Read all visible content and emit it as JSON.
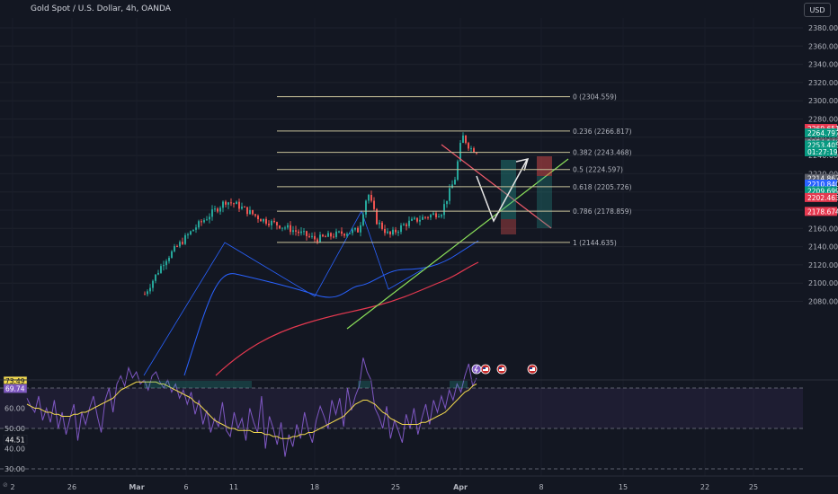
{
  "header": {
    "title": "Gold Spot / U.S. Dollar, 4h, OANDA",
    "currency_button": "USD"
  },
  "colors": {
    "background": "#131722",
    "fib": "#c8c29a",
    "price_axis_text": "#b2b5be",
    "ma_fast": "#2962ff",
    "ma_slow": "#e53950",
    "trend_up": "#8be05a",
    "trend_down": "#f05a6a",
    "rsi": "#7e57c2",
    "rsi_ma": "#f2d94e",
    "bull": "#26a69a",
    "bear": "#ef5350"
  },
  "chart_data": {
    "type": "candlestick",
    "price_axis": {
      "ticks": [
        "2380.000",
        "2360.000",
        "2340.000",
        "2320.000",
        "2300.000",
        "2280.000",
        "2260.000",
        "2240.000",
        "2220.000",
        "2200.000",
        "2180.000",
        "2160.000",
        "2140.000",
        "2120.000",
        "2100.000",
        "2080.000"
      ],
      "range": [
        2075,
        2390
      ]
    },
    "time_axis": {
      "labels": [
        {
          "text": "2",
          "bold": false
        },
        {
          "text": "26",
          "bold": false
        },
        {
          "text": "Mar",
          "bold": true
        },
        {
          "text": "6",
          "bold": false
        },
        {
          "text": "11",
          "bold": false
        },
        {
          "text": "18",
          "bold": false
        },
        {
          "text": "25",
          "bold": false
        },
        {
          "text": "Apr",
          "bold": true
        },
        {
          "text": "8",
          "bold": false
        },
        {
          "text": "15",
          "bold": false
        },
        {
          "text": "22",
          "bold": false
        },
        {
          "text": "25",
          "bold": false
        }
      ]
    },
    "fib_levels": [
      {
        "label": "0 (2304.559)",
        "price": 2304.559
      },
      {
        "label": "0.236 (2266.817)",
        "price": 2266.817
      },
      {
        "label": "0.382 (2243.468)",
        "price": 2243.468
      },
      {
        "label": "0.5 (2224.597)",
        "price": 2224.597
      },
      {
        "label": "0.618 (2205.726)",
        "price": 2205.726
      },
      {
        "label": "0.786 (2178.859)",
        "price": 2178.859
      },
      {
        "label": "1 (2144.635)",
        "price": 2144.635
      }
    ],
    "price_badges": [
      {
        "text": "2269.651",
        "price": 2269.651,
        "color": "#e53950"
      },
      {
        "text": "2264.797",
        "price": 2264.797,
        "color": "#089981"
      },
      {
        "text": "2254.146",
        "price": 2254.146,
        "color": "#5d606b"
      },
      {
        "text": "2253.405",
        "price": 2251.5,
        "color": "#089981"
      },
      {
        "text": "01:27:19",
        "price": 2244.0,
        "color": "#089981"
      },
      {
        "text": "2214.867",
        "price": 2214.867,
        "color": "#5d606b"
      },
      {
        "text": "2210.840",
        "price": 2208.6,
        "color": "#2962ff"
      },
      {
        "text": "2209.699",
        "price": 2201.2,
        "color": "#089981"
      },
      {
        "text": "2202.463",
        "price": 2193.9,
        "color": "#e53950"
      },
      {
        "text": "2178.674",
        "price": 2178.674,
        "color": "#e53950"
      }
    ],
    "rsi": {
      "ticks": [
        "60.00",
        "50.00",
        "40.00",
        "30.00"
      ],
      "levels": [
        70,
        50,
        30
      ],
      "range": [
        28,
        78
      ],
      "badges": [
        {
          "text": "73.49",
          "value": 73.49,
          "color": "#f2d94e"
        },
        {
          "text": "69.74",
          "value": 69.74,
          "color": "#7e57c2"
        },
        {
          "text": "44.51",
          "value": 44.51,
          "color": "#131722"
        }
      ],
      "values": [
        65,
        61,
        58,
        66,
        54,
        60,
        53,
        64,
        50,
        58,
        47,
        55,
        62,
        44,
        58,
        52,
        60,
        66,
        56,
        48,
        64,
        70,
        58,
        72,
        76,
        71,
        80,
        75,
        78,
        72,
        74,
        69,
        76,
        78,
        73,
        70,
        74,
        68,
        72,
        65,
        69,
        62,
        68,
        57,
        64,
        52,
        59,
        48,
        55,
        51,
        63,
        49,
        46,
        58,
        50,
        55,
        44,
        60,
        53,
        48,
        66,
        40,
        56,
        50,
        42,
        53,
        36,
        47,
        41,
        52,
        45,
        58,
        49,
        43,
        54,
        61,
        56,
        50,
        64,
        57,
        65,
        51,
        70,
        59,
        66,
        71,
        85,
        78,
        74,
        60,
        56,
        50,
        61,
        45,
        54,
        49,
        43,
        57,
        50,
        60,
        47,
        55,
        62,
        52,
        64,
        58,
        66,
        60,
        69,
        64,
        72,
        68,
        76,
        82,
        71,
        75
      ]
    },
    "rsi_ma": [
      62,
      61,
      60,
      60,
      59,
      58,
      58,
      57,
      57,
      56,
      56,
      56,
      57,
      57,
      58,
      58,
      59,
      60,
      61,
      62,
      63,
      64,
      65,
      67,
      69,
      70,
      71,
      72,
      73,
      73,
      73,
      73,
      73,
      73,
      72,
      72,
      71,
      70,
      69,
      68,
      67,
      66,
      65,
      63,
      62,
      60,
      58,
      56,
      54,
      53,
      52,
      51,
      50,
      50,
      49,
      49,
      49,
      49,
      48,
      48,
      48,
      47,
      47,
      46,
      46,
      45,
      45,
      45,
      46,
      46,
      47,
      47,
      48,
      48,
      49,
      50,
      51,
      52,
      53,
      54,
      55,
      56,
      58,
      60,
      62,
      63,
      64,
      64,
      63,
      62,
      60,
      58,
      57,
      55,
      54,
      53,
      52,
      52,
      52,
      52,
      52,
      53,
      53,
      54,
      55,
      56,
      57,
      58,
      60,
      62,
      64,
      66,
      68,
      69,
      71,
      72
    ]
  }
}
